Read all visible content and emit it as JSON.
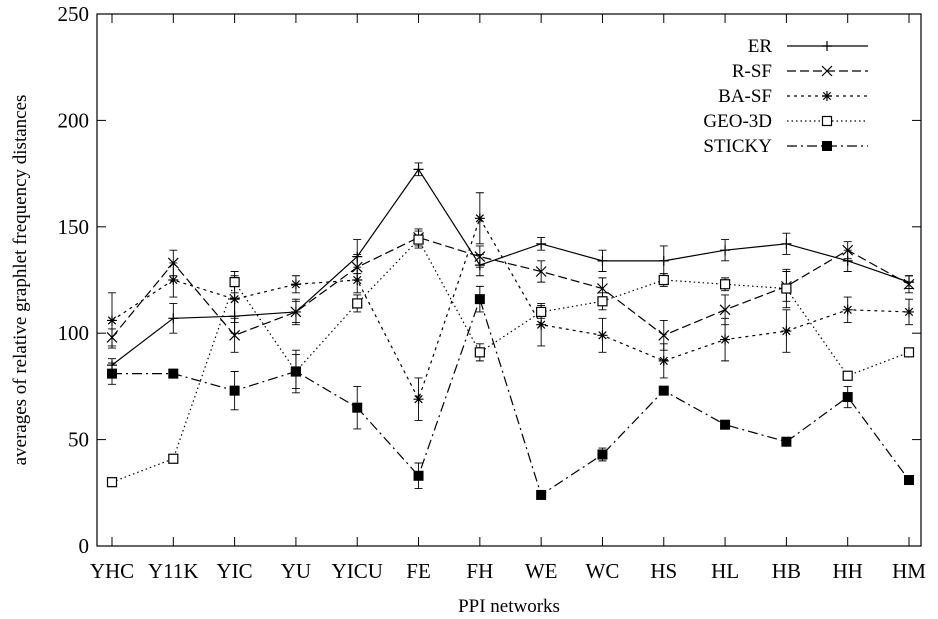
{
  "chart_data": {
    "type": "line",
    "xlabel": "PPI networks",
    "ylabel": "averages of relative graphlet frequency distances",
    "ylim": [
      0,
      250
    ],
    "yticks": [
      0,
      50,
      100,
      150,
      200,
      250
    ],
    "categories": [
      "YHC",
      "Y11K",
      "YIC",
      "YU",
      "YICU",
      "FE",
      "FH",
      "WE",
      "WC",
      "HS",
      "HL",
      "HB",
      "HH",
      "HM"
    ],
    "grid": false,
    "legend_position": "top-right",
    "series": [
      {
        "name": "ER",
        "style": "solid",
        "marker": "plus",
        "values": [
          85,
          107,
          108,
          110,
          136,
          177,
          132,
          142,
          134,
          134,
          139,
          142,
          134,
          124
        ],
        "errors": [
          3,
          7,
          8,
          6,
          8,
          3,
          5,
          3,
          5,
          7,
          5,
          5,
          5,
          3
        ]
      },
      {
        "name": "R-SF",
        "style": "dashed",
        "marker": "x",
        "values": [
          98,
          133,
          99,
          110,
          131,
          145,
          136,
          129,
          121,
          99,
          111,
          122,
          139,
          123
        ],
        "errors": [
          4,
          6,
          8,
          5,
          6,
          4,
          5,
          5,
          5,
          7,
          7,
          7,
          4,
          4
        ]
      },
      {
        "name": "BA-SF",
        "style": "dotted-dash",
        "marker": "star",
        "values": [
          106,
          125,
          116,
          123,
          125,
          69,
          154,
          104,
          99,
          87,
          97,
          101,
          111,
          110
        ],
        "errors": [
          13,
          8,
          11,
          4,
          6,
          10,
          12,
          10,
          8,
          8,
          10,
          10,
          6,
          6
        ]
      },
      {
        "name": "GEO-3D",
        "style": "dotted",
        "marker": "open-square",
        "values": [
          30,
          41,
          124,
          82,
          114,
          144,
          91,
          110,
          115,
          125,
          123,
          121,
          80,
          91
        ],
        "errors": [
          2,
          2,
          5,
          10,
          4,
          4,
          4,
          3,
          4,
          3,
          3,
          9,
          2,
          2
        ]
      },
      {
        "name": "STICKY",
        "style": "dash-dot",
        "marker": "filled-square",
        "values": [
          81,
          81,
          73,
          82,
          65,
          33,
          116,
          24,
          43,
          73,
          57,
          49,
          70,
          31
        ],
        "errors": [
          5,
          2,
          9,
          8,
          10,
          6,
          6,
          2,
          3,
          2,
          2,
          2,
          5,
          2
        ]
      }
    ]
  },
  "colors": {
    "ink": "#000000",
    "background": "#ffffff"
  }
}
